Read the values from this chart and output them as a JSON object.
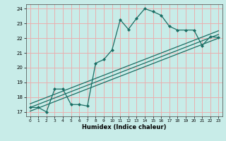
{
  "title": "",
  "xlabel": "Humidex (Indice chaleur)",
  "bg_color": "#c8ece8",
  "grid_color": "#e8b0b0",
  "line_color": "#1a6e64",
  "xlim": [
    -0.5,
    23.5
  ],
  "ylim": [
    16.7,
    24.3
  ],
  "xticks": [
    0,
    1,
    2,
    3,
    4,
    5,
    6,
    7,
    8,
    9,
    10,
    11,
    12,
    13,
    14,
    15,
    16,
    17,
    18,
    19,
    20,
    21,
    22,
    23
  ],
  "yticks": [
    17,
    18,
    19,
    20,
    21,
    22,
    23,
    24
  ],
  "main_line_x": [
    0,
    1,
    2,
    3,
    4,
    5,
    6,
    7,
    8,
    9,
    10,
    11,
    12,
    13,
    14,
    15,
    16,
    17,
    18,
    19,
    20,
    21,
    22,
    23
  ],
  "main_line_y": [
    17.3,
    17.3,
    17.0,
    18.55,
    18.55,
    17.5,
    17.5,
    17.4,
    20.3,
    20.55,
    21.2,
    23.25,
    22.6,
    23.35,
    24.0,
    23.8,
    23.55,
    22.8,
    22.55,
    22.55,
    22.55,
    21.5,
    22.1,
    22.05
  ],
  "trend1_x": [
    0,
    23
  ],
  "trend1_y": [
    17.05,
    22.0
  ],
  "trend2_x": [
    0,
    23
  ],
  "trend2_y": [
    17.3,
    22.25
  ],
  "trend3_x": [
    0,
    23
  ],
  "trend3_y": [
    17.55,
    22.5
  ]
}
